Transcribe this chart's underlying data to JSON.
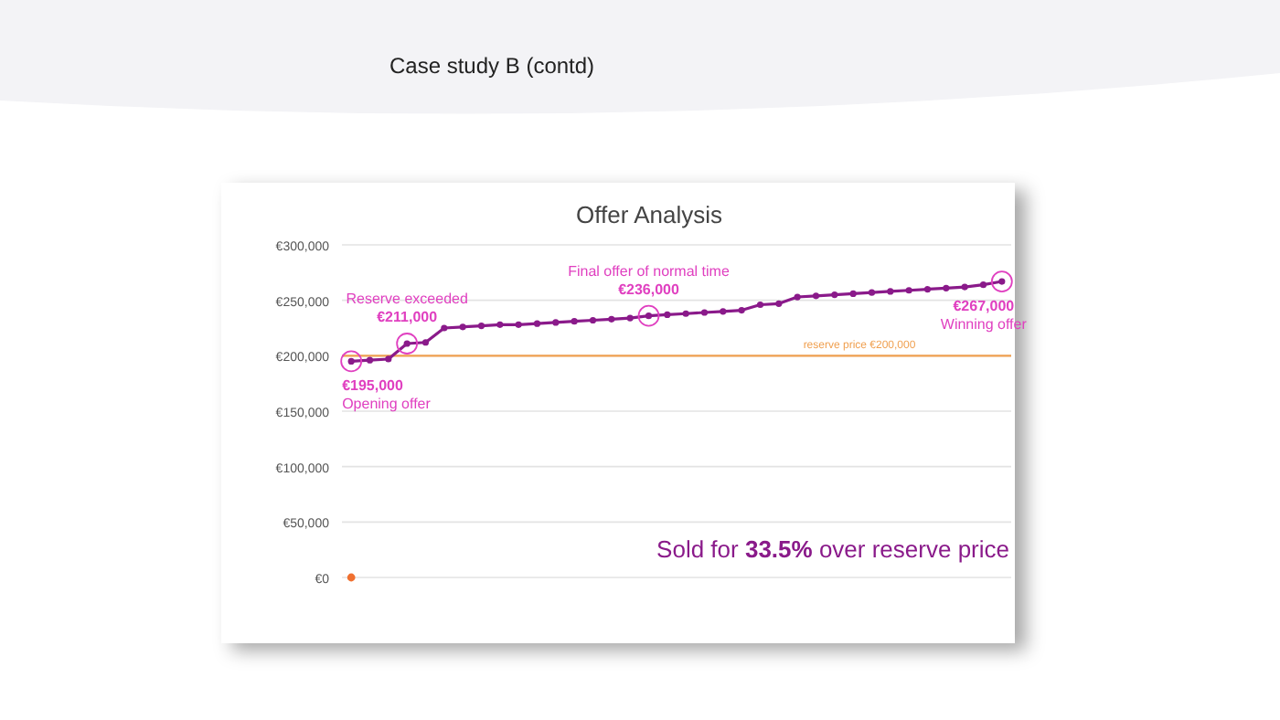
{
  "chart_data": {
    "type": "line",
    "title": "Offer Analysis",
    "subtitle": "Case study B (contd)",
    "categories": [
      null,
      null,
      null,
      null,
      null,
      null,
      null,
      null,
      null,
      null,
      null,
      null,
      null,
      null,
      null,
      null,
      null,
      null,
      null,
      null,
      null,
      null,
      null,
      null,
      null,
      null,
      null,
      null,
      null,
      null,
      null,
      null,
      null,
      null,
      null,
      null
    ],
    "series": [
      {
        "color": "#8a1a8a",
        "values": [
          195000,
          196000,
          197000,
          211000,
          212000,
          225000,
          226000,
          227000,
          228000,
          228000,
          229000,
          230000,
          231000,
          232000,
          233000,
          234000,
          236000,
          237000,
          238000,
          239000,
          240000,
          241000,
          246000,
          247000,
          253000,
          254000,
          255000,
          256000,
          257000,
          258000,
          259000,
          260000,
          261000,
          262000,
          264000,
          267000
        ]
      },
      {
        "type": "scatter",
        "color": "#f07030",
        "values": [
          0,
          null,
          null,
          null,
          null,
          null,
          null,
          null,
          null,
          null,
          null,
          null,
          null,
          null,
          null,
          null,
          null,
          null,
          null,
          null,
          null,
          null,
          null,
          null,
          null,
          null,
          null,
          null,
          null,
          null,
          null,
          null,
          null,
          null,
          null,
          null
        ]
      }
    ],
    "marker": "circle",
    "ylim": [
      0,
      300000
    ],
    "yticks": [
      {
        "value": 0,
        "label": "€0"
      },
      {
        "value": 50000,
        "label": "€50,000"
      },
      {
        "value": 100000,
        "label": "€100,000"
      },
      {
        "value": 150000,
        "label": "€150,000"
      },
      {
        "value": 200000,
        "label": "€200,000"
      },
      {
        "value": 250000,
        "label": "€250,000"
      },
      {
        "value": 300000,
        "label": "€300,000"
      }
    ],
    "grid": "y",
    "ref_lines": [
      {
        "axis": "y",
        "value": 200000,
        "label": "reserve price €200,000",
        "color": "#f0a050"
      }
    ],
    "annotations": [
      {
        "text": "€195,000\nOpening offer",
        "y": 195000
      },
      {
        "text": "Reserve exceeded\n€211,000",
        "y": 211000
      },
      {
        "text": "Final offer of normal time\n€236,000",
        "y": 236000
      },
      {
        "text": "€267,000\nWinning offer",
        "y": 267000
      },
      "Sold for 33.5% over reserve price"
    ]
  }
}
